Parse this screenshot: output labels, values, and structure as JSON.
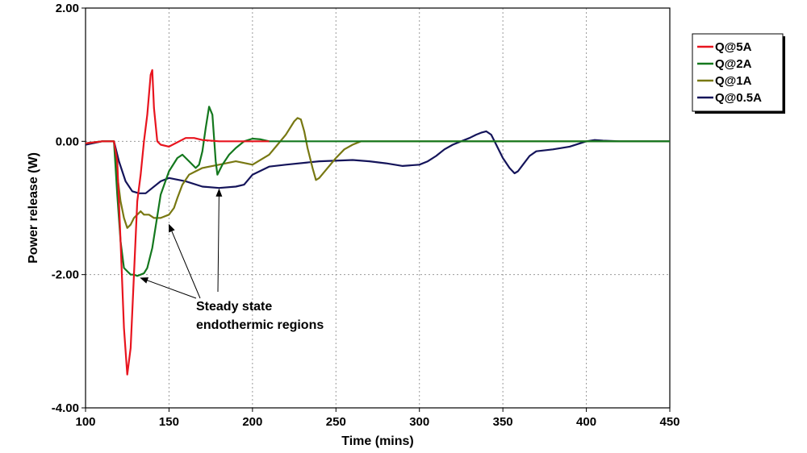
{
  "chart_data": {
    "type": "line",
    "xlabel": "Time (mins)",
    "ylabel": "Power release (W)",
    "xlim": [
      100,
      450
    ],
    "ylim": [
      -4,
      2
    ],
    "x_ticks": [
      100,
      150,
      200,
      250,
      300,
      350,
      400,
      450
    ],
    "x_tick_labels": [
      "100",
      "150",
      "200",
      "250",
      "300",
      "350",
      "400",
      "450"
    ],
    "y_ticks": [
      2,
      0,
      -2,
      -4
    ],
    "y_tick_labels": [
      "2.00",
      "0.00",
      "-2.00",
      "-4.00"
    ],
    "grid": true,
    "legend_position": "top-right",
    "series": [
      {
        "name": "Q@5A",
        "color": "#e8141e",
        "x": [
          100,
          110,
          117,
          119,
          121,
          123,
          125,
          127,
          129,
          131,
          133,
          135,
          137,
          139,
          140,
          141,
          143,
          145,
          150,
          160,
          165,
          170,
          180,
          200,
          210
        ],
        "y": [
          -0.03,
          0,
          0,
          -0.3,
          -1.5,
          -2.8,
          -3.5,
          -3.1,
          -2.0,
          -0.9,
          -0.5,
          0.0,
          0.4,
          1.0,
          1.07,
          0.5,
          0.0,
          -0.05,
          -0.08,
          0.05,
          0.05,
          0.02,
          0,
          0,
          0
        ]
      },
      {
        "name": "Q@2A",
        "color": "#14781e",
        "x": [
          100,
          110,
          117,
          119,
          121,
          123,
          125,
          127,
          129,
          131,
          133,
          135,
          137,
          140,
          145,
          150,
          155,
          158,
          162,
          166,
          168,
          170,
          172,
          174,
          176,
          178,
          179,
          182,
          186,
          190,
          195,
          200,
          205,
          210,
          220,
          450
        ],
        "y": [
          -0.03,
          0,
          0,
          -0.8,
          -1.5,
          -1.9,
          -1.95,
          -2.0,
          -2.0,
          -2.02,
          -2.0,
          -1.98,
          -1.9,
          -1.6,
          -0.8,
          -0.45,
          -0.25,
          -0.2,
          -0.3,
          -0.4,
          -0.35,
          -0.15,
          0.2,
          0.52,
          0.4,
          -0.3,
          -0.5,
          -0.35,
          -0.2,
          -0.1,
          0.0,
          0.04,
          0.03,
          0,
          0,
          0
        ]
      },
      {
        "name": "Q@1A",
        "color": "#787812",
        "x": [
          100,
          110,
          117,
          119,
          121,
          123,
          125,
          127,
          129,
          131,
          133,
          135,
          138,
          141,
          145,
          150,
          153,
          155,
          158,
          162,
          166,
          170,
          180,
          190,
          200,
          210,
          215,
          220,
          225,
          227,
          229,
          231,
          233,
          236,
          238,
          240,
          245,
          250,
          255,
          260,
          265,
          275,
          450
        ],
        "y": [
          -0.03,
          0,
          0,
          -0.5,
          -0.9,
          -1.15,
          -1.3,
          -1.25,
          -1.15,
          -1.1,
          -1.05,
          -1.1,
          -1.1,
          -1.15,
          -1.15,
          -1.1,
          -1.0,
          -0.85,
          -0.65,
          -0.5,
          -0.45,
          -0.4,
          -0.35,
          -0.3,
          -0.35,
          -0.2,
          -0.05,
          0.1,
          0.3,
          0.35,
          0.33,
          0.15,
          -0.1,
          -0.4,
          -0.58,
          -0.55,
          -0.4,
          -0.25,
          -0.12,
          -0.05,
          0,
          0,
          0
        ]
      },
      {
        "name": "Q@0.5A",
        "color": "#14145a",
        "x": [
          100,
          110,
          117,
          120,
          124,
          128,
          132,
          136,
          140,
          145,
          150,
          160,
          170,
          180,
          190,
          195,
          200,
          210,
          220,
          240,
          260,
          270,
          280,
          290,
          300,
          305,
          310,
          315,
          320,
          325,
          330,
          334,
          337,
          340,
          343,
          346,
          350,
          354,
          357,
          359,
          362,
          366,
          370,
          380,
          390,
          400,
          405,
          410,
          420,
          450
        ],
        "y": [
          -0.05,
          0,
          0,
          -0.3,
          -0.6,
          -0.75,
          -0.78,
          -0.78,
          -0.7,
          -0.6,
          -0.55,
          -0.6,
          -0.68,
          -0.7,
          -0.68,
          -0.65,
          -0.5,
          -0.38,
          -0.35,
          -0.3,
          -0.28,
          -0.3,
          -0.33,
          -0.37,
          -0.35,
          -0.3,
          -0.22,
          -0.12,
          -0.05,
          0.0,
          0.05,
          0.1,
          0.13,
          0.15,
          0.1,
          -0.05,
          -0.25,
          -0.4,
          -0.48,
          -0.45,
          -0.35,
          -0.22,
          -0.15,
          -0.12,
          -0.08,
          0,
          0.02,
          0.01,
          0,
          0
        ]
      }
    ],
    "annotations": [
      {
        "text_lines": [
          "Steady state",
          "endothermic regions"
        ],
        "arrows_to": [
          [
            133,
            -2.05
          ],
          [
            150,
            -1.25
          ],
          [
            180,
            -0.72
          ]
        ]
      }
    ]
  }
}
